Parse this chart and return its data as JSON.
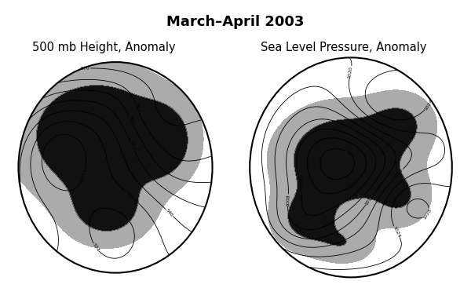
{
  "title": "March–April 2003",
  "title_fontsize": 13,
  "subtitle_left": "500 mb Height, Anomaly",
  "subtitle_right": "Sea Level Pressure, Anomaly",
  "subtitle_fontsize": 10.5,
  "bg_color": "#ffffff",
  "shade_color": "#111111",
  "fig_width": 6.0,
  "fig_height": 3.81,
  "dpi": 100
}
